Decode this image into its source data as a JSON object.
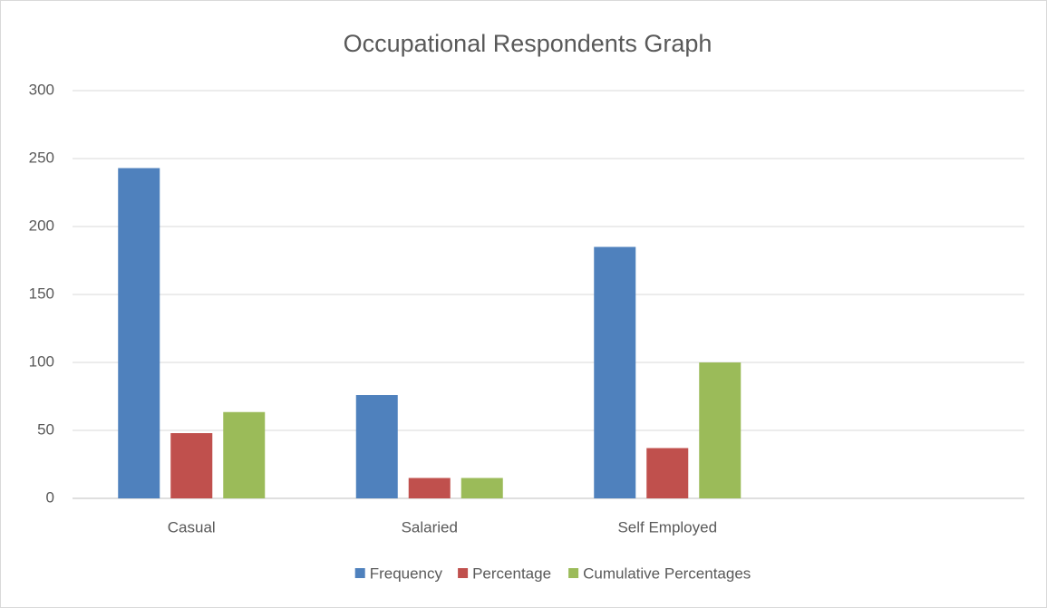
{
  "chart_data": {
    "type": "bar",
    "title": "Occupational Respondents Graph",
    "categories": [
      "Casual",
      "Salaried",
      "Self Employed",
      null
    ],
    "series": [
      {
        "name": "Frequency",
        "color": "#4f81bd",
        "values": [
          243,
          76,
          185,
          null
        ]
      },
      {
        "name": "Percentage",
        "color": "#c0504d",
        "values": [
          48,
          15,
          37,
          null
        ]
      },
      {
        "name": "Cumulative Percentages",
        "color": "#9bbb59",
        "values": [
          63.5,
          15,
          100,
          null
        ]
      }
    ],
    "ylim": [
      0,
      300
    ],
    "yticks": [
      0,
      50,
      100,
      150,
      200,
      250,
      300
    ],
    "grid": true,
    "legend": "bottom"
  }
}
